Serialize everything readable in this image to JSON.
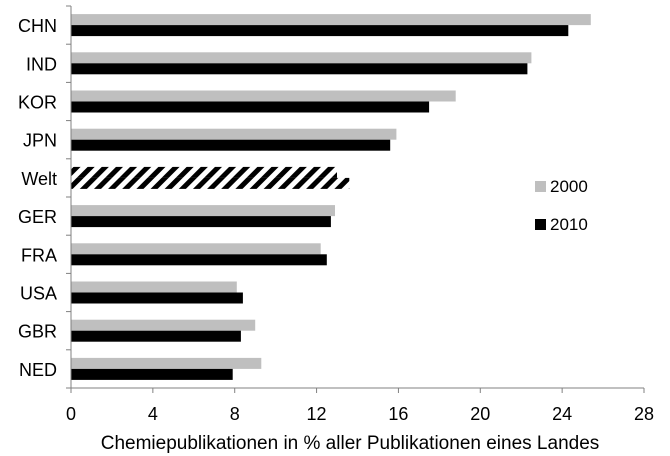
{
  "chart_data": {
    "type": "bar",
    "orientation": "horizontal",
    "categories": [
      "CHN",
      "IND",
      "KOR",
      "JPN",
      "Welt",
      "GER",
      "FRA",
      "USA",
      "GBR",
      "NED"
    ],
    "series": [
      {
        "name": "2000",
        "color": "#bfbfbf",
        "values": [
          25.4,
          22.5,
          18.8,
          15.9,
          13.0,
          12.9,
          12.2,
          8.1,
          9.0,
          9.3
        ]
      },
      {
        "name": "2010",
        "color": "#000000",
        "values": [
          24.3,
          22.3,
          17.5,
          15.6,
          13.6,
          12.7,
          12.5,
          8.4,
          8.3,
          7.9
        ]
      }
    ],
    "highlight": {
      "category": "Welt",
      "pattern": "diagonal-stripes"
    },
    "xlabel": "Chemiepublikationen in % aller Publikationen eines Landes",
    "ylabel": "",
    "xlim": [
      0,
      28
    ],
    "xticks": [
      0,
      4,
      8,
      12,
      16,
      20,
      24,
      28
    ],
    "grid": false,
    "legend": "right"
  }
}
